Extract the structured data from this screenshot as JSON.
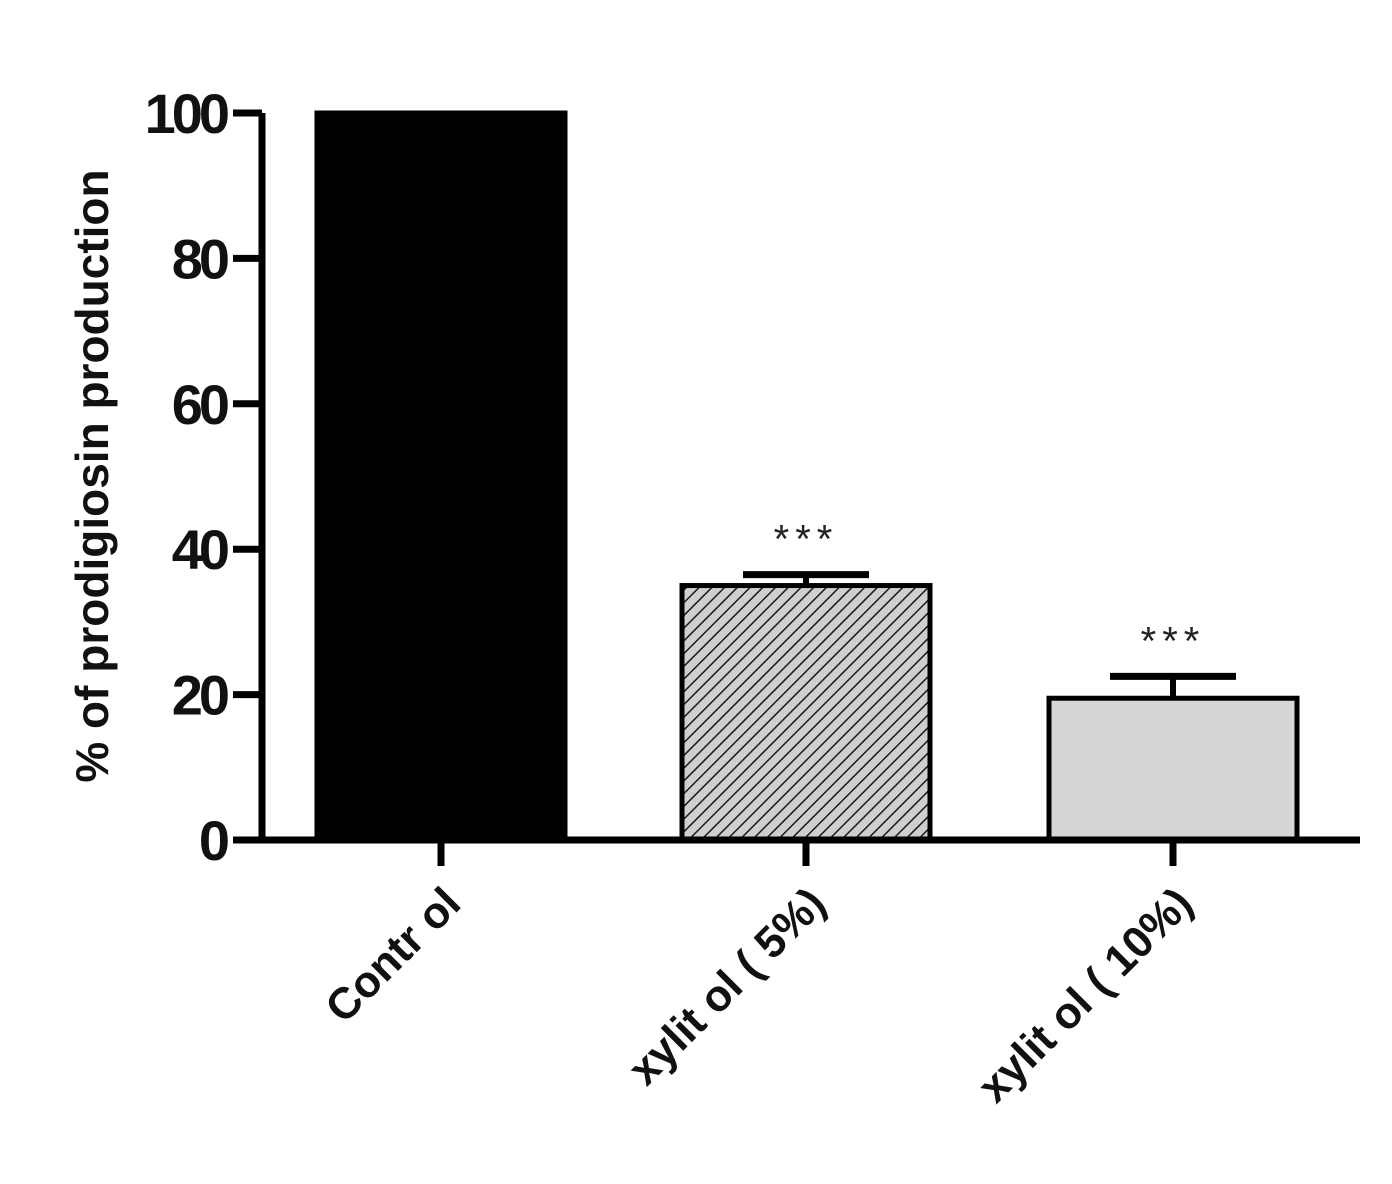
{
  "chart_data": {
    "type": "bar",
    "title": "",
    "xlabel": "",
    "ylabel": "% of prodigiosin production",
    "ylim": [
      0,
      100
    ],
    "yticks": [
      0,
      20,
      40,
      60,
      80,
      100
    ],
    "ytick_labels": [
      "0",
      "20",
      "40",
      "60",
      "80",
      "100"
    ],
    "categories": [
      "Contr ol",
      "xylit ol ( 5%)",
      "xylit ol ( 10%)"
    ],
    "values": [
      100,
      35,
      19.5
    ],
    "errors": [
      0,
      1.5,
      3
    ],
    "annotations": [
      "",
      "***",
      "***"
    ],
    "bar_fills": [
      "#000000",
      "hatch",
      "#d6d6d6"
    ],
    "grid": false,
    "legend": "none"
  }
}
